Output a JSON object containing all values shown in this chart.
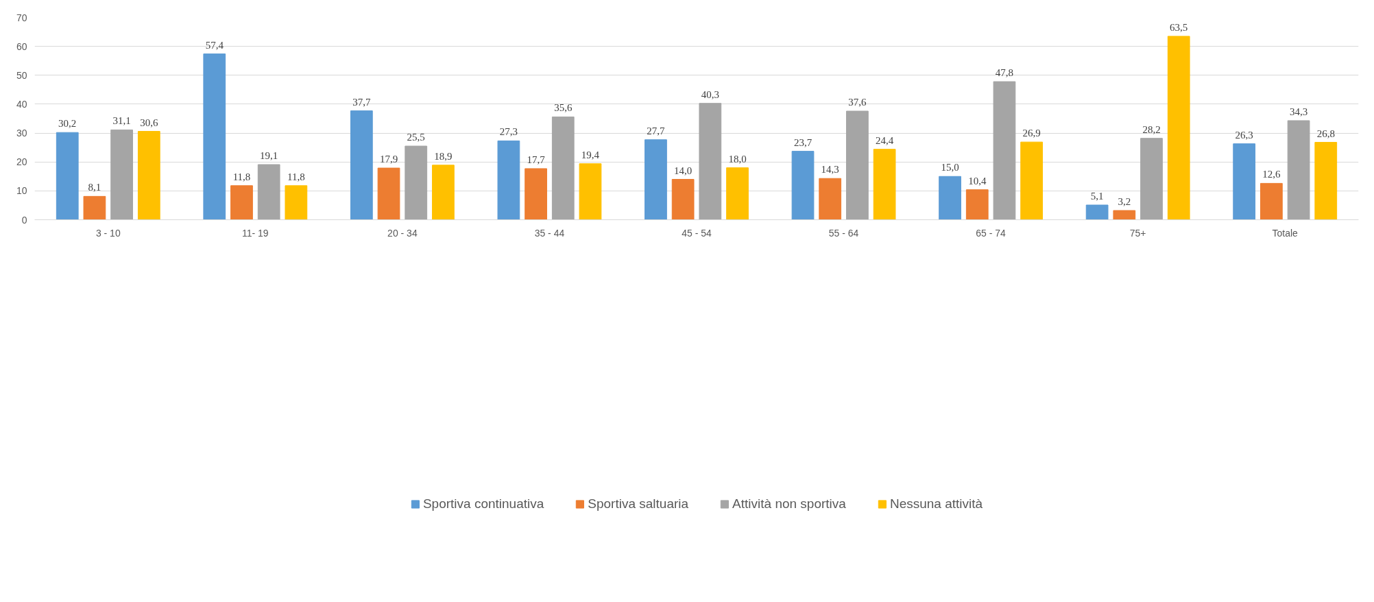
{
  "chart_data": {
    "type": "bar",
    "categories": [
      "3 - 10",
      "11- 19",
      "20 - 34",
      "35 - 44",
      "45 - 54",
      "55 - 64",
      "65 - 74",
      "75+",
      "Totale"
    ],
    "series": [
      {
        "name": "Sportiva continuativa",
        "color": "#5b9bd5",
        "values": [
          30.2,
          57.4,
          37.7,
          27.3,
          27.7,
          23.7,
          15.0,
          5.1,
          26.3
        ],
        "value_labels": [
          "30,2",
          "57,4",
          "37,7",
          "27,3",
          "27,7",
          "23,7",
          "15,0",
          "5,1",
          "26,3"
        ]
      },
      {
        "name": "Sportiva saltuaria",
        "color": "#ed7d31",
        "values": [
          8.1,
          11.8,
          17.9,
          17.7,
          14.0,
          14.3,
          10.4,
          3.2,
          12.6
        ],
        "value_labels": [
          "8,1",
          "11,8",
          "17,9",
          "17,7",
          "14,0",
          "14,3",
          "10,4",
          "3,2",
          "12,6"
        ]
      },
      {
        "name": "Attività non sportiva",
        "color": "#a5a5a5",
        "values": [
          31.1,
          19.1,
          25.5,
          35.6,
          40.3,
          37.6,
          47.8,
          28.2,
          34.3
        ],
        "value_labels": [
          "31,1",
          "19,1",
          "25,5",
          "35,6",
          "40,3",
          "37,6",
          "47,8",
          "28,2",
          "34,3"
        ]
      },
      {
        "name": "Nessuna attività",
        "color": "#ffc000",
        "values": [
          30.6,
          11.8,
          18.9,
          19.4,
          18.0,
          24.4,
          26.9,
          63.5,
          26.8
        ],
        "value_labels": [
          "30,6",
          "11,8",
          "18,9",
          "19,4",
          "18,0",
          "24,4",
          "26,9",
          "63,5",
          "26,8"
        ]
      }
    ],
    "ylim": [
      0,
      70
    ],
    "yticks": [
      0,
      10,
      20,
      30,
      40,
      50,
      60,
      70
    ],
    "grid": "y",
    "legend": "bottom"
  }
}
